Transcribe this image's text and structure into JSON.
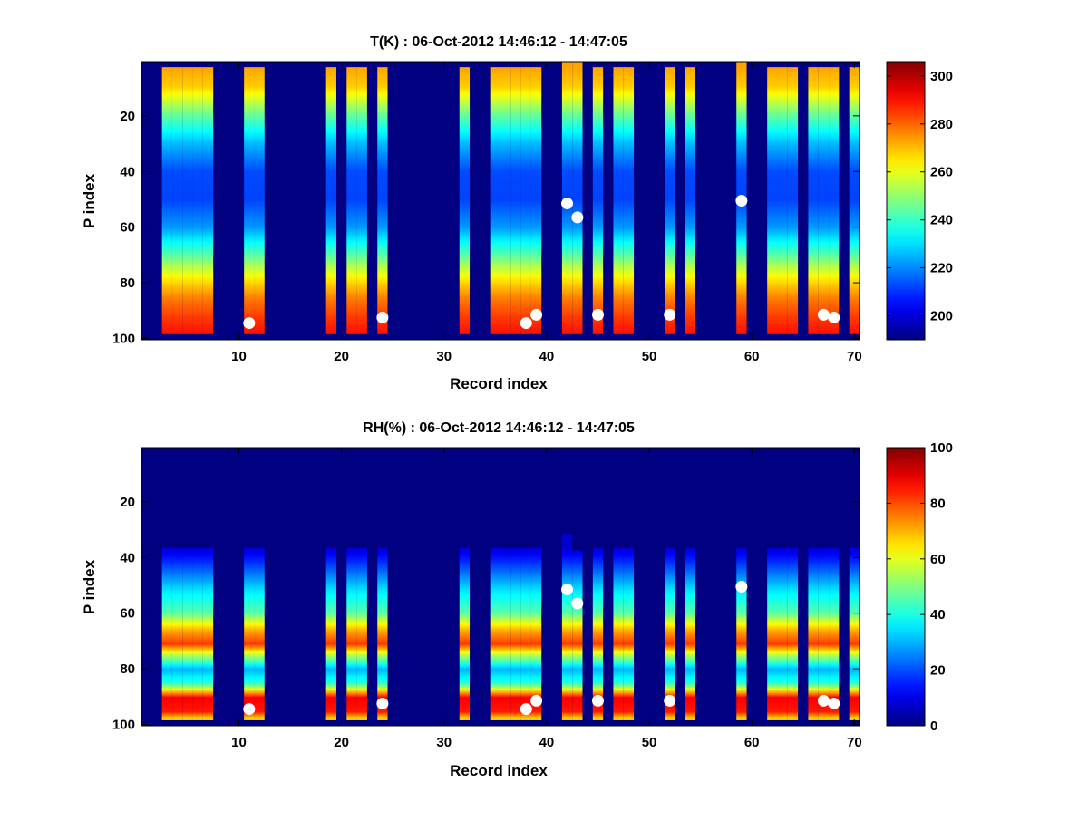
{
  "chart_data": [
    {
      "type": "heatmap",
      "title": "T(K) : 06-Oct-2012 14:46:12 - 14:47:05",
      "xlabel": "Record index",
      "ylabel": "P index",
      "xlim": [
        0.5,
        70.5
      ],
      "ylim": [
        0.5,
        100.5
      ],
      "y_reversed": true,
      "xticks": [
        10,
        20,
        30,
        40,
        50,
        60,
        70
      ],
      "yticks": [
        20,
        40,
        60,
        80,
        100
      ],
      "colormap": "jet",
      "clim": [
        190,
        306
      ],
      "colorbar_ticks": [
        200,
        220,
        240,
        260,
        280,
        300
      ],
      "background_value": 190,
      "profile_rows": [
        3,
        98
      ],
      "columns": [
        3,
        4,
        5,
        6,
        7,
        11,
        12,
        19,
        21,
        22,
        24,
        32,
        35,
        36,
        37,
        38,
        39,
        42,
        43,
        45,
        47,
        48,
        52,
        54,
        59,
        62,
        63,
        64,
        66,
        67,
        68,
        70
      ],
      "column_top_rows": {
        "42": 0,
        "43": 0,
        "59": 0
      },
      "profile": [
        {
          "p": 3,
          "value": 273
        },
        {
          "p": 10,
          "value": 268
        },
        {
          "p": 20,
          "value": 245
        },
        {
          "p": 30,
          "value": 226
        },
        {
          "p": 40,
          "value": 213
        },
        {
          "p": 50,
          "value": 212
        },
        {
          "p": 60,
          "value": 222
        },
        {
          "p": 70,
          "value": 244
        },
        {
          "p": 78,
          "value": 264
        },
        {
          "p": 85,
          "value": 277
        },
        {
          "p": 92,
          "value": 285
        },
        {
          "p": 98,
          "value": 290
        }
      ],
      "markers": [
        {
          "x": 11,
          "y": 94.5
        },
        {
          "x": 24,
          "y": 92.5
        },
        {
          "x": 38,
          "y": 94.5
        },
        {
          "x": 39,
          "y": 91.5
        },
        {
          "x": 42,
          "y": 51.5
        },
        {
          "x": 43,
          "y": 56.5
        },
        {
          "x": 45,
          "y": 91.5
        },
        {
          "x": 52,
          "y": 91.5
        },
        {
          "x": 59,
          "y": 50.5
        },
        {
          "x": 67,
          "y": 91.5
        },
        {
          "x": 68,
          "y": 92.5
        }
      ]
    },
    {
      "type": "heatmap",
      "title": "RH(%) : 06-Oct-2012 14:46:12 - 14:47:05",
      "xlabel": "Record index",
      "ylabel": "P index",
      "xlim": [
        0.5,
        70.5
      ],
      "ylim": [
        0.5,
        100.5
      ],
      "y_reversed": true,
      "xticks": [
        10,
        20,
        30,
        40,
        50,
        60,
        70
      ],
      "yticks": [
        20,
        40,
        60,
        80,
        100
      ],
      "colormap": "jet",
      "clim": [
        0,
        100
      ],
      "colorbar_ticks": [
        0,
        20,
        40,
        60,
        80,
        100
      ],
      "background_value": 0,
      "profile_rows": [
        37,
        98
      ],
      "columns": [
        3,
        4,
        5,
        6,
        7,
        11,
        12,
        19,
        21,
        22,
        24,
        32,
        35,
        36,
        37,
        38,
        39,
        42,
        43,
        45,
        47,
        48,
        52,
        54,
        59,
        62,
        63,
        64,
        66,
        67,
        68,
        70
      ],
      "column_top_rows": {
        "42": 32,
        "43": 38,
        "59": 37
      },
      "profile": [
        {
          "p": 37,
          "value": 8
        },
        {
          "p": 45,
          "value": 22
        },
        {
          "p": 52,
          "value": 35
        },
        {
          "p": 60,
          "value": 46
        },
        {
          "p": 66,
          "value": 70
        },
        {
          "p": 71,
          "value": 82
        },
        {
          "p": 75,
          "value": 55
        },
        {
          "p": 80,
          "value": 30
        },
        {
          "p": 85,
          "value": 42
        },
        {
          "p": 90,
          "value": 88
        },
        {
          "p": 95,
          "value": 85
        },
        {
          "p": 98,
          "value": 60
        }
      ],
      "markers": [
        {
          "x": 11,
          "y": 94.5
        },
        {
          "x": 24,
          "y": 92.5
        },
        {
          "x": 38,
          "y": 94.5
        },
        {
          "x": 39,
          "y": 91.5
        },
        {
          "x": 42,
          "y": 51.5
        },
        {
          "x": 43,
          "y": 56.5
        },
        {
          "x": 45,
          "y": 91.5
        },
        {
          "x": 52,
          "y": 91.5
        },
        {
          "x": 59,
          "y": 50.5
        },
        {
          "x": 67,
          "y": 91.5
        },
        {
          "x": 68,
          "y": 92.5
        }
      ]
    }
  ]
}
